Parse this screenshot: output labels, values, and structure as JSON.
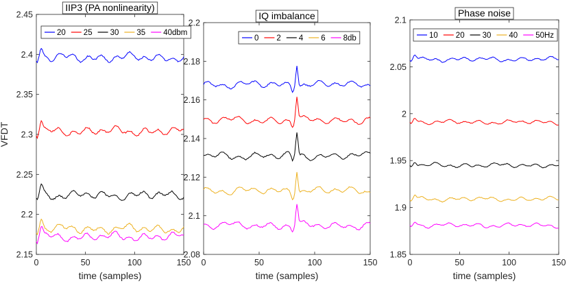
{
  "chart_data": [
    {
      "type": "line",
      "title": "IIP3 (PA nonlinearity)",
      "xlabel": "time (samples)",
      "ylabel": "VFDT",
      "xlim": [
        0,
        150
      ],
      "ylim": [
        2.15,
        2.45
      ],
      "xticks": [
        "0",
        "50",
        "100",
        "150"
      ],
      "yticks": [
        "2.15",
        "2.2",
        "2.25",
        "2.3",
        "2.35",
        "2.4",
        "2.45"
      ],
      "legend_position": "top",
      "series": [
        {
          "name": "20",
          "color": "#0000ff",
          "mean": 2.396,
          "amp": 0.005,
          "spike": 0.013
        },
        {
          "name": "25",
          "color": "#ff0000",
          "mean": 2.304,
          "amp": 0.005,
          "spike": 0.013
        },
        {
          "name": "30",
          "color": "#000000",
          "mean": 2.224,
          "amp": 0.005,
          "spike": 0.012
        },
        {
          "name": "35",
          "color": "#edb120",
          "mean": 2.182,
          "amp": 0.005,
          "spike": 0.013
        },
        {
          "name": "40dbm",
          "color": "#ff00ff",
          "mean": 2.172,
          "amp": 0.005,
          "spike": 0.012
        }
      ]
    },
    {
      "type": "line",
      "title": "IQ imbalance",
      "xlabel": "time (samples)",
      "ylabel": "",
      "xlim": [
        0,
        150
      ],
      "ylim": [
        2.08,
        2.2
      ],
      "xticks": [
        "0",
        "50",
        "100",
        "150"
      ],
      "yticks": [
        "2.08",
        "2.1",
        "2.12",
        "2.14",
        "2.16",
        "2.18",
        "2.2"
      ],
      "legend_position": "top",
      "series": [
        {
          "name": "0",
          "color": "#0000ff",
          "mean": 2.168,
          "amp": 0.0018,
          "peak_at": 84,
          "peak": 0.012
        },
        {
          "name": "2",
          "color": "#ff0000",
          "mean": 2.1495,
          "amp": 0.0018,
          "peak_at": 84,
          "peak": 0.0125
        },
        {
          "name": "4",
          "color": "#000000",
          "mean": 2.131,
          "amp": 0.0018,
          "peak_at": 84,
          "peak": 0.012
        },
        {
          "name": "6",
          "color": "#edb120",
          "mean": 2.113,
          "amp": 0.0018,
          "peak_at": 84,
          "peak": 0.0115
        },
        {
          "name": "8db",
          "color": "#ff00ff",
          "mean": 2.095,
          "amp": 0.0018,
          "peak_at": 84,
          "peak": 0.011
        }
      ]
    },
    {
      "type": "line",
      "title": "Phase noise",
      "xlabel": "time (samples)",
      "ylabel": "",
      "xlim": [
        0,
        150
      ],
      "ylim": [
        1.85,
        2.1
      ],
      "xticks": [
        "0",
        "50",
        "100",
        "150"
      ],
      "yticks": [
        "1.85",
        "1.9",
        "1.95",
        "2",
        "2.05",
        "2.1"
      ],
      "legend_position": "top",
      "series": [
        {
          "name": "10",
          "color": "#0000ff",
          "mean": 2.058,
          "amp": 0.0022,
          "spike": 0.006
        },
        {
          "name": "20",
          "color": "#ff0000",
          "mean": 1.991,
          "amp": 0.0022,
          "spike": 0.005
        },
        {
          "name": "30",
          "color": "#000000",
          "mean": 1.945,
          "amp": 0.0022,
          "spike": 0.005
        },
        {
          "name": "40",
          "color": "#edb120",
          "mean": 1.909,
          "amp": 0.0022,
          "spike": 0.005
        },
        {
          "name": "50Hz",
          "color": "#ff00ff",
          "mean": 1.881,
          "amp": 0.0022,
          "spike": 0.004
        }
      ]
    }
  ]
}
